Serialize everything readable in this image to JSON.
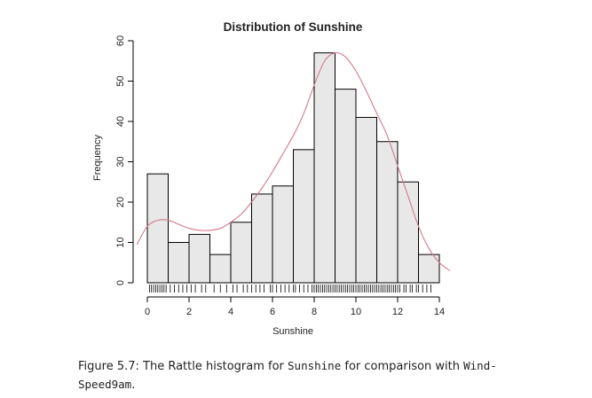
{
  "chart_data": {
    "type": "bar",
    "subtype": "histogram",
    "title": "Distribution of Sunshine",
    "xlabel": "Sunshine",
    "ylabel": "Frequency",
    "bin_edges": [
      0,
      1,
      2,
      3,
      4,
      5,
      6,
      7,
      8,
      9,
      10,
      11,
      12,
      13,
      14
    ],
    "values": [
      27,
      10,
      12,
      7,
      15,
      22,
      24,
      33,
      57,
      48,
      41,
      35,
      25,
      7
    ],
    "xlim": [
      0,
      14
    ],
    "ylim": [
      0,
      60
    ],
    "x_ticks": [
      "0",
      "2",
      "4",
      "6",
      "8",
      "10",
      "12",
      "14"
    ],
    "y_ticks": [
      "0",
      "10",
      "20",
      "30",
      "40",
      "50",
      "60"
    ],
    "bar_fill": "#e8e8e8",
    "bar_stroke": "#000000",
    "density_curve": {
      "color": "#d6788a",
      "x": [
        -0.5,
        0,
        0.5,
        1,
        1.5,
        2,
        2.5,
        3,
        3.5,
        4,
        4.5,
        5,
        5.5,
        6,
        6.5,
        7,
        7.5,
        8,
        8.5,
        9,
        9.5,
        10,
        10.5,
        11,
        11.5,
        12,
        12.5,
        13,
        13.5,
        14,
        14.5
      ],
      "y": [
        9.5,
        14,
        15.5,
        15.5,
        14.5,
        13.5,
        13,
        13,
        13.5,
        15,
        17,
        20,
        23.5,
        27.5,
        32,
        36.5,
        42,
        49,
        55,
        57,
        56,
        52.5,
        47.5,
        42,
        36.5,
        29,
        21.5,
        14,
        8.5,
        5,
        3
      ]
    },
    "rug": [
      0.1,
      0.2,
      0.3,
      0.4,
      0.5,
      0.6,
      0.7,
      0.8,
      0.9,
      1.1,
      1.3,
      1.5,
      1.7,
      1.9,
      2.1,
      2.3,
      2.6,
      2.8,
      3.2,
      3.5,
      3.8,
      4.1,
      4.3,
      4.6,
      4.8,
      5.0,
      5.2,
      5.4,
      5.6,
      5.9,
      6.0,
      6.2,
      6.4,
      6.6,
      6.8,
      7.0,
      7.1,
      7.3,
      7.5,
      7.7,
      7.9,
      8.0,
      8.1,
      8.2,
      8.3,
      8.4,
      8.5,
      8.6,
      8.7,
      8.8,
      8.9,
      9.0,
      9.1,
      9.2,
      9.3,
      9.4,
      9.5,
      9.6,
      9.7,
      9.8,
      9.9,
      10.0,
      10.1,
      10.2,
      10.3,
      10.4,
      10.5,
      10.6,
      10.7,
      10.8,
      10.9,
      11.0,
      11.1,
      11.2,
      11.3,
      11.4,
      11.5,
      11.6,
      11.7,
      11.8,
      11.9,
      12.0,
      12.1,
      12.3,
      12.4,
      12.6,
      12.7,
      12.9,
      13.0,
      13.2,
      13.4,
      13.6
    ]
  },
  "caption": {
    "prefix": "Figure 5.7:  The Rattle histogram for ",
    "var1": "Sunshine",
    "middle": " for comparison with ",
    "var2_line1": "Wind-",
    "var2_line2": "Speed9am",
    "suffix": "."
  }
}
